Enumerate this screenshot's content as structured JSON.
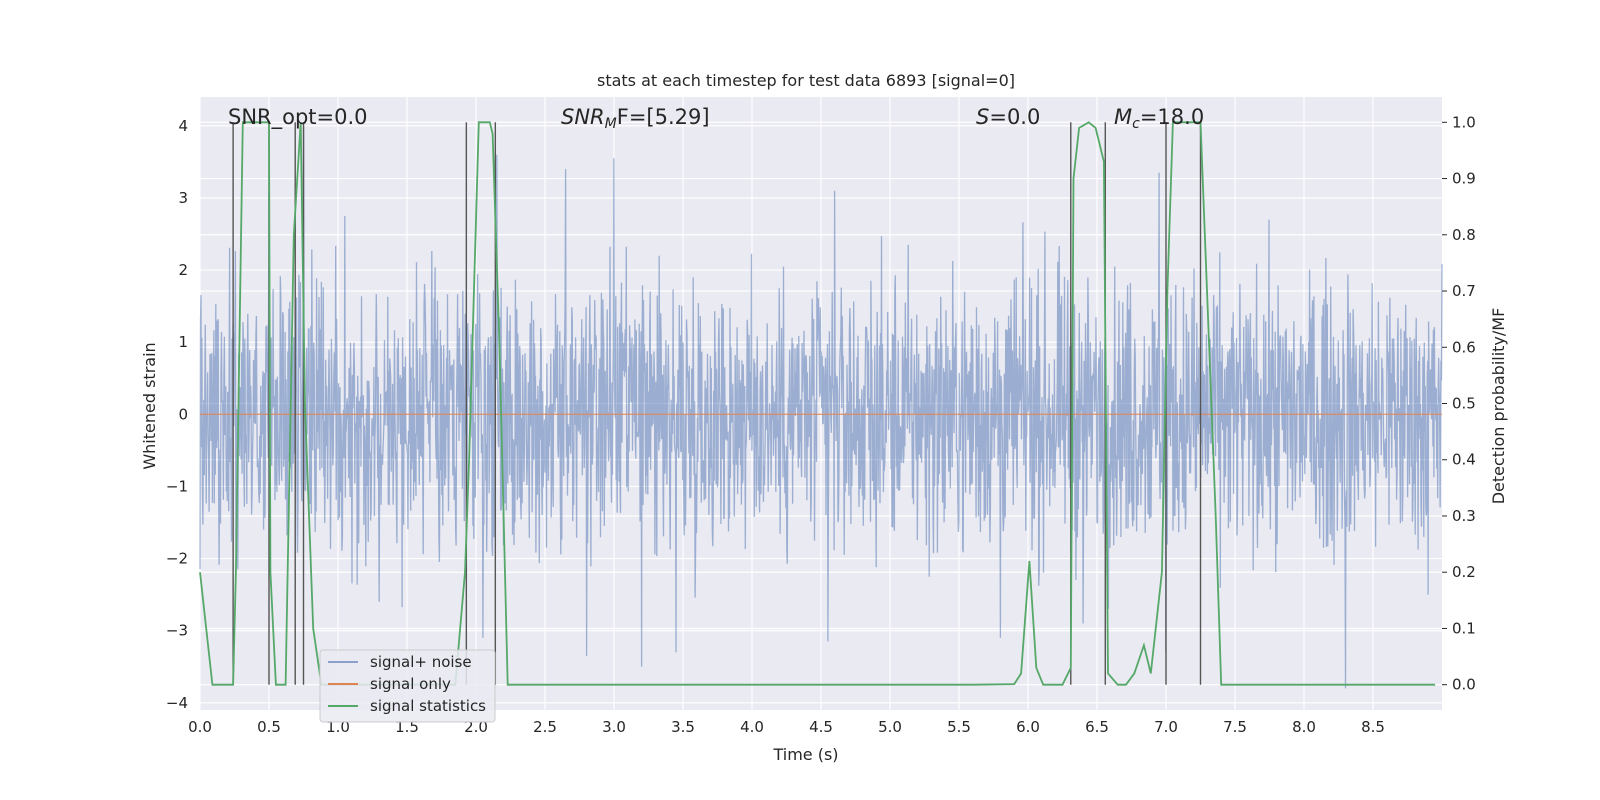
{
  "chart_data": {
    "type": "line",
    "title": "stats at each timestep for test data 6893 [signal=0]",
    "xlabel": "Time (s)",
    "ylabel": "Whitened strain",
    "y2label": "Detection probability/MF",
    "xlim": [
      0,
      9.0
    ],
    "ylim": [
      -4.1,
      4.4
    ],
    "y2lim": [
      -0.045,
      1.045
    ],
    "xticks": [
      "0.0",
      "0.5",
      "1.0",
      "1.5",
      "2.0",
      "2.5",
      "3.0",
      "3.5",
      "4.0",
      "4.5",
      "5.0",
      "5.5",
      "6.0",
      "6.5",
      "7.0",
      "7.5",
      "8.0",
      "8.5"
    ],
    "yticks": [
      "4",
      "3",
      "2",
      "1",
      "0",
      "−1",
      "−2",
      "−3",
      "−4"
    ],
    "y2ticks": [
      "1.0",
      "0.9",
      "0.8",
      "0.7",
      "0.6",
      "0.5",
      "0.4",
      "0.3",
      "0.2",
      "0.1",
      "0.0"
    ],
    "annotations": {
      "snr_opt": "SNR_opt=0.0",
      "snr_mf_sym": "SNR",
      "snr_mf_sub": "M",
      "snr_mf_rest": "F=[5.29]",
      "s_sym": "S",
      "s_rest": "=0.0",
      "mc_sym": "M",
      "mc_sub": "c",
      "mc_rest": "=18.0"
    },
    "legend": [
      "signal+ noise",
      "signal only",
      "signal statistics"
    ],
    "legend_position": "lower-left",
    "colors": {
      "noise": "#4c72b0",
      "signal": "#dd8452",
      "stats": "#55a868",
      "vline": "#555555",
      "plot_bg": "#eaeaf2",
      "grid": "#ffffff"
    },
    "series": [
      {
        "name": "signal+ noise",
        "description": "dense whitened strain noise, envelope approx ±2 with spikes to about ±3.5",
        "envelope": 1.5,
        "spikes": [
          {
            "x": 0.5,
            "y": 3.1
          },
          {
            "x": 0.75,
            "y": 4.0
          },
          {
            "x": 1.05,
            "y": 2.75
          },
          {
            "x": 2.15,
            "y": 3.6
          },
          {
            "x": 2.65,
            "y": 3.4
          },
          {
            "x": 3.0,
            "y": 3.55
          },
          {
            "x": 3.45,
            "y": 3.15
          },
          {
            "x": 4.6,
            "y": 3.1
          },
          {
            "x": 6.95,
            "y": 3.35
          },
          {
            "x": 1.3,
            "y": -2.6
          },
          {
            "x": 2.05,
            "y": -3.1
          },
          {
            "x": 2.8,
            "y": -3.35
          },
          {
            "x": 3.2,
            "y": -3.5
          },
          {
            "x": 3.45,
            "y": -3.3
          },
          {
            "x": 4.55,
            "y": -3.15
          },
          {
            "x": 5.8,
            "y": -3.1
          },
          {
            "x": 7.0,
            "y": -3.3
          },
          {
            "x": 8.3,
            "y": -3.8
          },
          {
            "x": 6.4,
            "y": -2.9
          },
          {
            "x": 8.9,
            "y": -2.5
          }
        ]
      },
      {
        "name": "signal only",
        "x": [
          0,
          9.0
        ],
        "y": [
          0,
          0
        ]
      },
      {
        "name": "signal statistics",
        "axis": "right",
        "x": [
          0,
          0.09,
          0.24,
          0.26,
          0.31,
          0.5,
          0.51,
          0.55,
          0.62,
          0.68,
          0.73,
          0.76,
          0.82,
          0.88,
          1.85,
          1.92,
          1.95,
          2.02,
          2.1,
          2.12,
          2.17,
          2.23,
          5.6,
          5.9,
          5.95,
          6.01,
          6.06,
          6.11,
          6.25,
          6.31,
          6.33,
          6.37,
          6.44,
          6.49,
          6.55,
          6.58,
          6.65,
          6.71,
          6.77,
          6.84,
          6.89,
          6.97,
          7.01,
          7.05,
          7.07,
          7.25,
          7.36,
          7.4,
          8.95
        ],
        "y": [
          0.2,
          0.0,
          0.0,
          0.2,
          1.0,
          1.0,
          0.2,
          0.0,
          0.0,
          0.8,
          1.0,
          0.5,
          0.1,
          0.0,
          0.0,
          0.2,
          0.4,
          1.0,
          1.0,
          0.98,
          0.6,
          0.0,
          0.0,
          0.001,
          0.02,
          0.22,
          0.03,
          0.0,
          0.0,
          0.03,
          0.9,
          0.99,
          1.0,
          0.99,
          0.93,
          0.02,
          0.0,
          0.0,
          0.02,
          0.07,
          0.02,
          0.2,
          0.7,
          1.0,
          1.0,
          1.0,
          0.3,
          0.0,
          0.0
        ]
      }
    ],
    "vertical_lines_x": [
      0.24,
      0.5,
      0.69,
      0.75,
      1.93,
      2.14,
      6.31,
      6.56,
      7.0,
      7.25
    ]
  }
}
